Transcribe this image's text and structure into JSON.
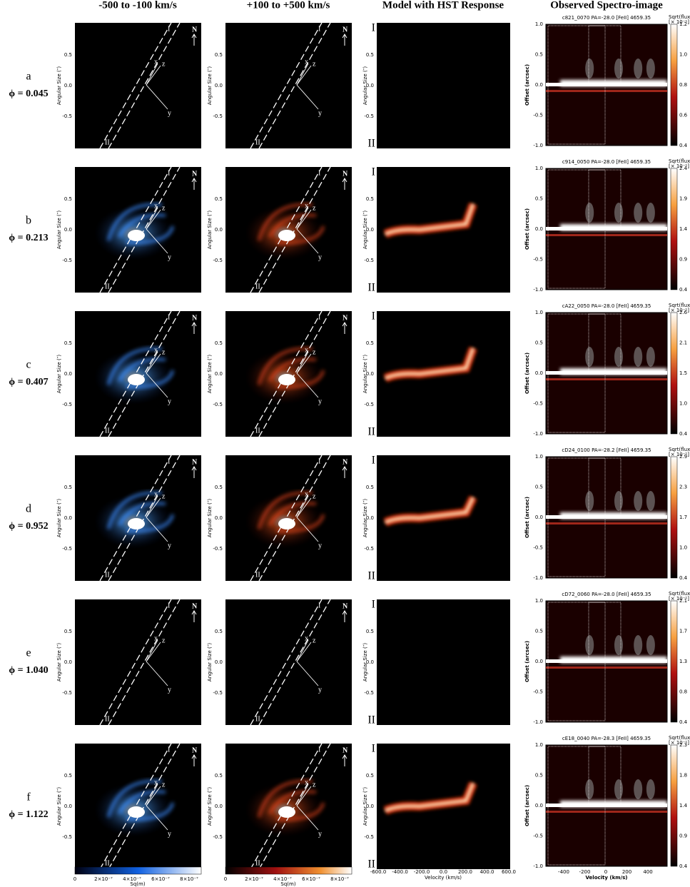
{
  "columns": [
    "-500 to -100 km/s",
    "+100 to +500 km/s",
    "Model with HST Response",
    "Observed Spectro-image"
  ],
  "rows": [
    {
      "letter": "a",
      "phase": "ϕ = 0.045",
      "spectro_title": "c821_0070  PA=-28.0 [FeII] 4659.35",
      "colorbar_ticks": [
        "1.2",
        "1.0",
        "0.8",
        "0.6",
        "0.4"
      ]
    },
    {
      "letter": "b",
      "phase": "ϕ = 0.213",
      "spectro_title": "c914_0050  PA=-28.0 [FeII] 4659.35",
      "colorbar_ticks": [
        "2.4",
        "1.9",
        "1.4",
        "0.9",
        "0.4"
      ]
    },
    {
      "letter": "c",
      "phase": "ϕ = 0.407",
      "spectro_title": "cA22_0050  PA=-28.0 [FeII] 4659.35",
      "colorbar_ticks": [
        "2.6",
        "2.1",
        "1.5",
        "1.0",
        "0.4"
      ]
    },
    {
      "letter": "d",
      "phase": "ϕ = 0.952",
      "spectro_title": "cD24_0100  PA=-28.2 [FeII] 4659.35",
      "colorbar_ticks": [
        "2.9",
        "2.3",
        "1.7",
        "1.0",
        "0.4"
      ]
    },
    {
      "letter": "e",
      "phase": "ϕ = 1.040",
      "spectro_title": "cD72_0060  PA=-28.0 [FeII] 4659.35",
      "colorbar_ticks": [
        "2.1",
        "1.7",
        "1.3",
        "0.8",
        "0.4"
      ]
    },
    {
      "letter": "f",
      "phase": "ϕ = 1.122",
      "spectro_title": "cE18_0040  PA=-28.3 [FeII] 4659.35",
      "colorbar_ticks": [
        "2.3",
        "1.8",
        "1.4",
        "0.9",
        "0.4"
      ]
    }
  ],
  "map_axis": {
    "label": "Angular Size (″)",
    "ticks": [
      "0.5",
      "0.0",
      "-0.5"
    ]
  },
  "map_labels": {
    "north": "N",
    "slit_top": "I",
    "slit_bottom": "II",
    "x": "x",
    "y": "y",
    "z": "z"
  },
  "model_axis": {
    "x_label": "Velocity (km/s)",
    "x_ticks": [
      "-600.0",
      "-400.0",
      "-200.0",
      "0.0",
      "200.0",
      "400.0",
      "600.0"
    ]
  },
  "spectro_axis": {
    "y_label": "Offset (arcsec)",
    "y_ticks": [
      "1.0",
      "0.5",
      "0.0",
      "-0.5",
      "-1.0"
    ],
    "x_label": "Velocity (km/s)",
    "x_ticks": [
      "-400",
      "-200",
      "0",
      "200",
      "400"
    ],
    "colorbar_label": "Sqrt(flux)",
    "colorbar_unit": "[× 10⁻¹]"
  },
  "bottom_colorbars": {
    "ticks": [
      "0",
      "2×10⁻⁷",
      "4×10⁻⁷",
      "6×10⁻⁷",
      "8×10⁻⁷"
    ],
    "label": "Sq(m)"
  }
}
